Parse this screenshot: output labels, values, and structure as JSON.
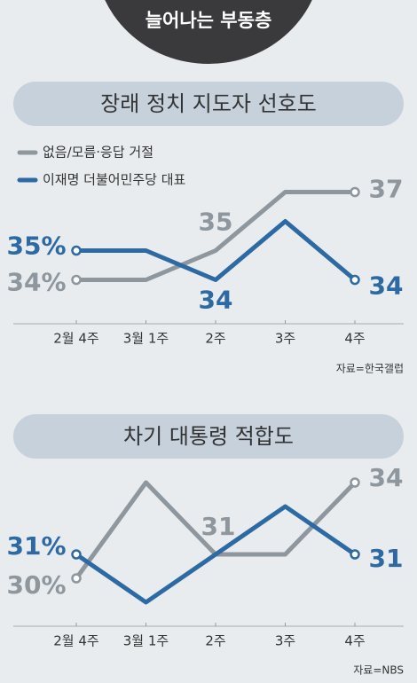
{
  "header": {
    "title": "늘어나는 부동층"
  },
  "chart_data": [
    {
      "type": "line",
      "title": "장래 정치 지도자 선호도",
      "categories": [
        "2월 4주",
        "3월 1주",
        "2주",
        "3주",
        "4주"
      ],
      "series": [
        {
          "name": "없음/모름·응답 거절",
          "color": "#8e979e",
          "values": [
            34,
            34,
            35,
            37,
            37
          ],
          "value_labels": [
            "34%",
            null,
            "35",
            null,
            "37"
          ]
        },
        {
          "name": "이재명 더불어민주당 대표",
          "color": "#2d6aa3",
          "values": [
            35,
            35,
            34,
            36,
            34
          ],
          "value_labels": [
            "35%",
            null,
            "34",
            null,
            "34"
          ]
        }
      ],
      "ylim": [
        32.5,
        38
      ],
      "source": "자료=한국갤럽"
    },
    {
      "type": "line",
      "title": "차기 대통령 적합도",
      "categories": [
        "2월 4주",
        "3월 1주",
        "2주",
        "3주",
        "4주"
      ],
      "series": [
        {
          "name": null,
          "color": "#8e979e",
          "values": [
            30,
            34,
            31,
            31,
            34
          ],
          "value_labels": [
            "30%",
            null,
            "31",
            null,
            "34"
          ]
        },
        {
          "name": null,
          "color": "#2d6aa3",
          "values": [
            31,
            29,
            31,
            33,
            31
          ],
          "value_labels": [
            "31%",
            null,
            null,
            null,
            "31"
          ]
        }
      ],
      "ylim": [
        28,
        35
      ],
      "source": "자료=NBS"
    }
  ]
}
